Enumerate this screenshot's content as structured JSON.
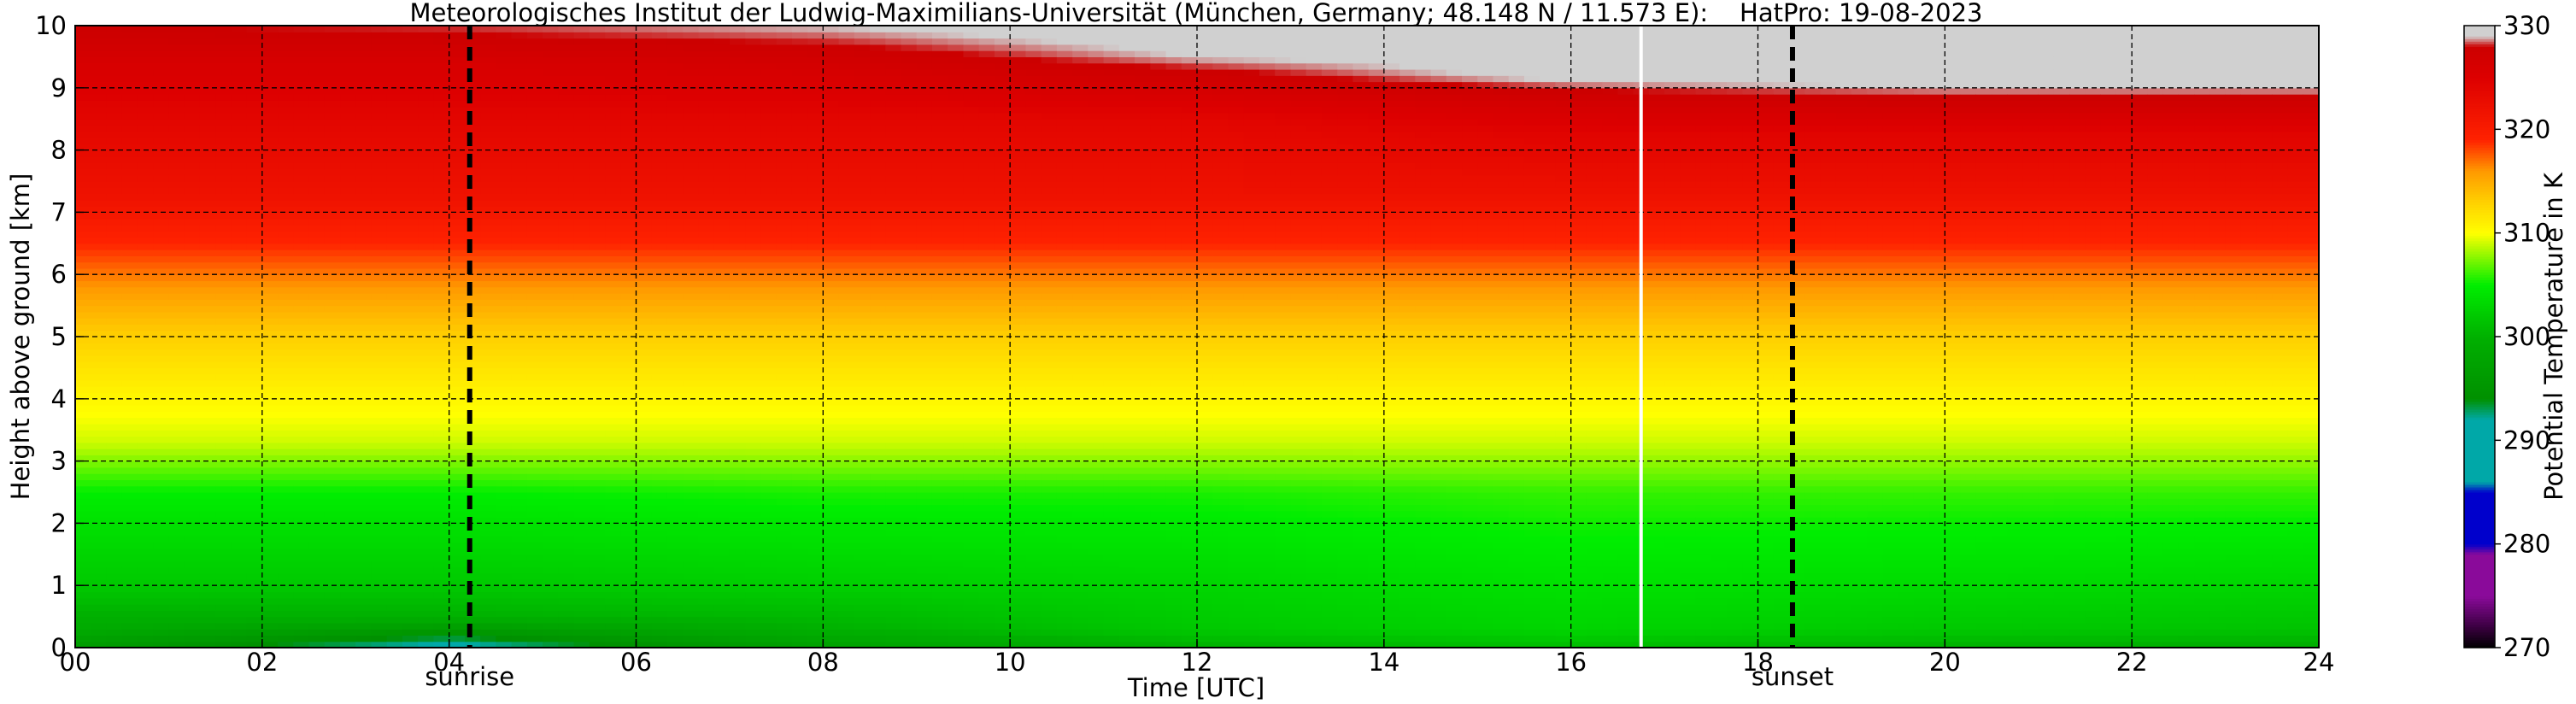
{
  "chart_data": {
    "type": "heatmap",
    "title": "Meteorologisches Institut der Ludwig-Maximilians-Universität (München, Germany; 48.148 N / 11.573 E):    HatPro: 19-08-2023",
    "xlabel": "Time [UTC]",
    "ylabel": "Height above ground [km]",
    "xlim": [
      0,
      24
    ],
    "ylim": [
      0,
      10
    ],
    "x_ticks": [
      "00",
      "02",
      "04",
      "06",
      "08",
      "10",
      "12",
      "14",
      "16",
      "18",
      "20",
      "22",
      "24"
    ],
    "y_ticks": [
      "0",
      "1",
      "2",
      "3",
      "4",
      "5",
      "6",
      "7",
      "8",
      "9",
      "10"
    ],
    "grid": true,
    "colorbar": {
      "label": "Potential Temperature in K",
      "range": [
        270,
        330
      ],
      "ticks": [
        "270",
        "280",
        "290",
        "300",
        "310",
        "320",
        "330"
      ],
      "colors": [
        {
          "value": 270,
          "color": "#000000"
        },
        {
          "value": 272,
          "color": "#3a0040"
        },
        {
          "value": 275,
          "color": "#8a0a9a"
        },
        {
          "value": 279,
          "color": "#8a0a9a"
        },
        {
          "value": 280,
          "color": "#0000cc"
        },
        {
          "value": 285,
          "color": "#0000cc"
        },
        {
          "value": 286,
          "color": "#00a8a8"
        },
        {
          "value": 292,
          "color": "#00a8a8"
        },
        {
          "value": 294,
          "color": "#009000"
        },
        {
          "value": 300,
          "color": "#00b000"
        },
        {
          "value": 305,
          "color": "#00ee00"
        },
        {
          "value": 310,
          "color": "#ffff00"
        },
        {
          "value": 313,
          "color": "#ffd000"
        },
        {
          "value": 316,
          "color": "#ff9900"
        },
        {
          "value": 319,
          "color": "#ff2200"
        },
        {
          "value": 325,
          "color": "#dd0000"
        },
        {
          "value": 328,
          "color": "#cc0000"
        },
        {
          "value": 329,
          "color": "#d0d0d0"
        },
        {
          "value": 330,
          "color": "#d0d0d0"
        }
      ]
    },
    "profiles": [
      {
        "time": 0,
        "points": [
          [
            0,
            296
          ],
          [
            0.3,
            299
          ],
          [
            1,
            302
          ],
          [
            2.5,
            305
          ],
          [
            3.3,
            309
          ],
          [
            4.2,
            311
          ],
          [
            5,
            313
          ],
          [
            5.8,
            316
          ],
          [
            6.5,
            319
          ],
          [
            7.3,
            322
          ],
          [
            8.5,
            324
          ],
          [
            9.4,
            326
          ],
          [
            9.8,
            327.5
          ],
          [
            10,
            328
          ]
        ]
      },
      {
        "time": 4,
        "points": [
          [
            0,
            291
          ],
          [
            0.2,
            294
          ],
          [
            0.5,
            300
          ],
          [
            1,
            302
          ],
          [
            2.5,
            305
          ],
          [
            3.3,
            309
          ],
          [
            4.2,
            311
          ],
          [
            5,
            313
          ],
          [
            5.8,
            316
          ],
          [
            6.5,
            319
          ],
          [
            7.3,
            322
          ],
          [
            8.5,
            324
          ],
          [
            9.4,
            326
          ],
          [
            9.8,
            327.8
          ],
          [
            10,
            328.3
          ]
        ]
      },
      {
        "time": 8,
        "points": [
          [
            0,
            297
          ],
          [
            0.3,
            300
          ],
          [
            1,
            302.5
          ],
          [
            2.5,
            305.5
          ],
          [
            3.3,
            309
          ],
          [
            4.2,
            311
          ],
          [
            5,
            313
          ],
          [
            5.8,
            316
          ],
          [
            6.5,
            319
          ],
          [
            7.3,
            322
          ],
          [
            8.5,
            324
          ],
          [
            9.2,
            326
          ],
          [
            9.7,
            328
          ],
          [
            10,
            329
          ]
        ]
      },
      {
        "time": 12,
        "points": [
          [
            0,
            300
          ],
          [
            0.3,
            302
          ],
          [
            1,
            303
          ],
          [
            2.5,
            305.5
          ],
          [
            3.3,
            309
          ],
          [
            4.2,
            311
          ],
          [
            5,
            313
          ],
          [
            5.8,
            316
          ],
          [
            6.5,
            319
          ],
          [
            7.3,
            322
          ],
          [
            8.5,
            324
          ],
          [
            9.0,
            326.5
          ],
          [
            9.5,
            329
          ],
          [
            10,
            330
          ]
        ]
      },
      {
        "time": 16,
        "points": [
          [
            0,
            301
          ],
          [
            0.3,
            303
          ],
          [
            1,
            304
          ],
          [
            2.5,
            306
          ],
          [
            3.3,
            309
          ],
          [
            4.2,
            311
          ],
          [
            5,
            313
          ],
          [
            5.8,
            316
          ],
          [
            6.5,
            319
          ],
          [
            7.3,
            322
          ],
          [
            8.3,
            324.5
          ],
          [
            8.8,
            327
          ],
          [
            9.2,
            329.5
          ],
          [
            10,
            330
          ]
        ]
      },
      {
        "time": 20,
        "points": [
          [
            0,
            300
          ],
          [
            0.3,
            302
          ],
          [
            1,
            303.5
          ],
          [
            2.5,
            306
          ],
          [
            3.3,
            309
          ],
          [
            4.2,
            311
          ],
          [
            5,
            313
          ],
          [
            5.8,
            316
          ],
          [
            6.5,
            319
          ],
          [
            7.3,
            322
          ],
          [
            8.3,
            324.5
          ],
          [
            8.7,
            327
          ],
          [
            9.1,
            329.5
          ],
          [
            10,
            330
          ]
        ]
      },
      {
        "time": 24,
        "points": [
          [
            0,
            299.5
          ],
          [
            0.3,
            301.5
          ],
          [
            1,
            303
          ],
          [
            2.5,
            306
          ],
          [
            3.3,
            309
          ],
          [
            4.2,
            311
          ],
          [
            5,
            313
          ],
          [
            5.8,
            316
          ],
          [
            6.5,
            319
          ],
          [
            7.3,
            322
          ],
          [
            8.3,
            324.5
          ],
          [
            8.7,
            327
          ],
          [
            9.1,
            329.5
          ],
          [
            10,
            330
          ]
        ]
      }
    ],
    "markers": [
      {
        "label": "sunrise",
        "time": 4.22
      },
      {
        "label": "sunset",
        "time": 18.37
      }
    ],
    "data_gap_time": 16.75
  }
}
